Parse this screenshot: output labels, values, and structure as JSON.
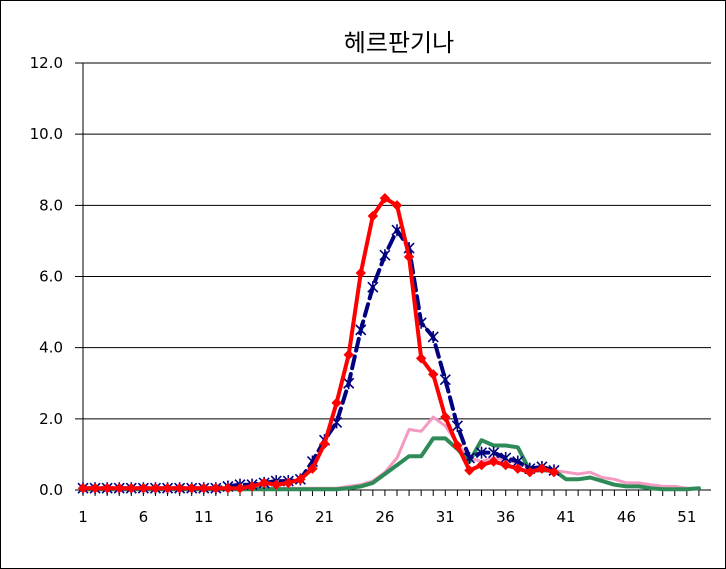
{
  "chart_data": {
    "type": "line",
    "title": "헤르판기나",
    "xlabel": "",
    "ylabel": "",
    "xlim": [
      1,
      53
    ],
    "ylim": [
      0,
      12
    ],
    "x_ticks": [
      1,
      6,
      11,
      16,
      21,
      26,
      31,
      36,
      41,
      46,
      51
    ],
    "x_tick_labels": [
      "1",
      "6",
      "11",
      "16",
      "21",
      "26",
      "31",
      "36",
      "41",
      "46",
      "51"
    ],
    "y_ticks": [
      0,
      2,
      4,
      6,
      8,
      10,
      12
    ],
    "y_tick_labels": [
      "0.0",
      "2.0",
      "4.0",
      "6.0",
      "8.0",
      "10.0",
      "12.0"
    ],
    "grid": "horizontal",
    "legend": "none",
    "series": [
      {
        "color": "#f49ac1",
        "style": "solid-thin",
        "x": [
          1,
          2,
          3,
          4,
          5,
          6,
          7,
          8,
          9,
          10,
          11,
          12,
          13,
          14,
          15,
          16,
          17,
          18,
          19,
          20,
          21,
          22,
          23,
          24,
          25,
          26,
          27,
          28,
          29,
          30,
          31,
          32,
          33,
          34,
          35,
          36,
          37,
          38,
          39,
          40,
          41,
          42,
          43,
          44,
          45,
          46,
          47,
          48,
          49,
          50,
          51,
          52
        ],
        "y": [
          0.05,
          0.05,
          0.05,
          0.05,
          0.05,
          0.05,
          0.05,
          0.05,
          0.05,
          0.05,
          0.05,
          0.05,
          0.05,
          0.05,
          0.05,
          0.05,
          0.05,
          0.05,
          0.05,
          0.05,
          0.05,
          0.05,
          0.1,
          0.15,
          0.25,
          0.5,
          0.9,
          1.7,
          1.65,
          2.05,
          1.8,
          1.3,
          0.9,
          0.8,
          0.9,
          0.85,
          0.75,
          0.65,
          0.6,
          0.55,
          0.5,
          0.45,
          0.5,
          0.35,
          0.3,
          0.2,
          0.2,
          0.15,
          0.1,
          0.1,
          0.05,
          0.05
        ]
      },
      {
        "color": "#2e8b57",
        "style": "solid-thick",
        "x": [
          1,
          2,
          3,
          4,
          5,
          6,
          7,
          8,
          9,
          10,
          11,
          12,
          13,
          14,
          15,
          16,
          17,
          18,
          19,
          20,
          21,
          22,
          23,
          24,
          25,
          26,
          27,
          28,
          29,
          30,
          31,
          32,
          33,
          34,
          35,
          36,
          37,
          38,
          39,
          40,
          41,
          42,
          43,
          44,
          45,
          46,
          47,
          48,
          49,
          50,
          51,
          52
        ],
        "y": [
          0.02,
          0.02,
          0.02,
          0.02,
          0.02,
          0.02,
          0.02,
          0.02,
          0.02,
          0.02,
          0.02,
          0.02,
          0.02,
          0.02,
          0.02,
          0.02,
          0.02,
          0.02,
          0.02,
          0.02,
          0.02,
          0.02,
          0.05,
          0.1,
          0.2,
          0.45,
          0.7,
          0.95,
          0.95,
          1.45,
          1.45,
          1.15,
          0.8,
          1.4,
          1.25,
          1.25,
          1.2,
          0.55,
          0.55,
          0.55,
          0.3,
          0.3,
          0.35,
          0.25,
          0.15,
          0.1,
          0.1,
          0.05,
          0.02,
          0.02,
          0.02,
          0.05
        ]
      },
      {
        "color": "#000080",
        "style": "dashed-star",
        "x": [
          1,
          2,
          3,
          4,
          5,
          6,
          7,
          8,
          9,
          10,
          11,
          12,
          13,
          14,
          15,
          16,
          17,
          18,
          19,
          20,
          21,
          22,
          23,
          24,
          25,
          26,
          27,
          28,
          29,
          30,
          31,
          32,
          33,
          34,
          35,
          36,
          37,
          38,
          39,
          40
        ],
        "y": [
          0.05,
          0.05,
          0.05,
          0.05,
          0.05,
          0.05,
          0.05,
          0.05,
          0.05,
          0.05,
          0.05,
          0.05,
          0.1,
          0.15,
          0.15,
          0.2,
          0.25,
          0.25,
          0.3,
          0.8,
          1.4,
          1.9,
          3.0,
          4.5,
          5.7,
          6.6,
          7.3,
          6.8,
          4.7,
          4.3,
          3.1,
          1.8,
          0.9,
          1.05,
          1.05,
          0.9,
          0.8,
          0.6,
          0.65,
          0.55
        ]
      },
      {
        "color": "#ff0000",
        "style": "solid-diamond",
        "x": [
          1,
          2,
          3,
          4,
          5,
          6,
          7,
          8,
          9,
          10,
          11,
          12,
          13,
          14,
          15,
          16,
          17,
          18,
          19,
          20,
          21,
          22,
          23,
          24,
          25,
          26,
          27,
          28,
          29,
          30,
          31,
          32,
          33,
          34,
          35,
          36,
          37,
          38,
          39,
          40
        ],
        "y": [
          0.05,
          0.05,
          0.05,
          0.05,
          0.05,
          0.05,
          0.05,
          0.05,
          0.05,
          0.05,
          0.05,
          0.05,
          0.05,
          0.05,
          0.1,
          0.2,
          0.15,
          0.2,
          0.3,
          0.6,
          1.3,
          2.45,
          3.8,
          6.1,
          7.7,
          8.2,
          8.0,
          6.55,
          3.7,
          3.25,
          2.05,
          1.25,
          0.55,
          0.7,
          0.8,
          0.7,
          0.6,
          0.5,
          0.6,
          0.5
        ]
      }
    ]
  }
}
